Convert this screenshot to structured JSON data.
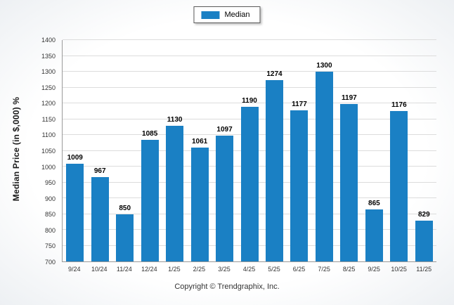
{
  "chart_data": {
    "type": "bar",
    "categories": [
      "9/24",
      "10/24",
      "11/24",
      "12/24",
      "1/25",
      "2/25",
      "3/25",
      "4/25",
      "5/25",
      "6/25",
      "7/25",
      "8/25",
      "9/25",
      "10/25",
      "11/25"
    ],
    "values": [
      1009,
      967,
      850,
      1085,
      1130,
      1061,
      1097,
      1190,
      1274,
      1177,
      1300,
      1197,
      865,
      1176,
      829
    ],
    "title": "",
    "xlabel": "",
    "ylabel": "Median Price (in $,000) %",
    "ylim": [
      700,
      1400
    ],
    "ytick_step": 50,
    "grid": true,
    "legend_position": "top",
    "series_name": "Median"
  },
  "legend": {
    "label": "Median"
  },
  "footer": {
    "text": "Copyright © Trendgraphix, Inc."
  },
  "colors": {
    "bar": "#1a80c4",
    "grid": "#dcdcdc",
    "axis": "#9a9a9a"
  }
}
